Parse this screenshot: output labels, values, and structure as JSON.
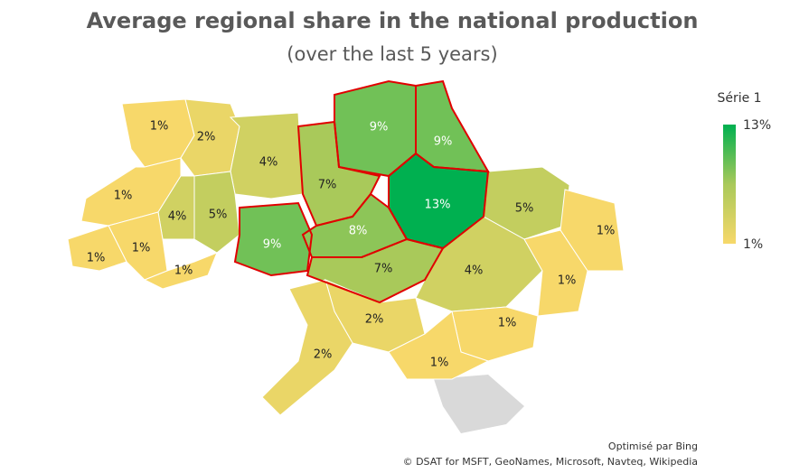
{
  "chart_data": {
    "type": "choropleth",
    "title": "Average regional share in the national production",
    "subtitle": "(over the last 5 years)",
    "values": [
      1,
      2,
      4,
      7,
      9,
      9,
      13,
      5,
      1,
      4,
      5,
      9,
      8,
      7,
      4,
      1,
      1,
      1,
      1,
      1,
      2,
      2,
      1,
      1
    ],
    "value_labels": [
      "1%",
      "2%",
      "4%",
      "7%",
      "9%",
      "9%",
      "13%",
      "5%",
      "1%",
      "4%",
      "5%",
      "9%",
      "8%",
      "7%",
      "4%",
      "1%",
      "1%",
      "1%",
      "1%",
      "1%",
      "2%",
      "2%",
      "1%",
      "1%"
    ],
    "legend_title": "Série 1",
    "color_range": [
      {
        "value": 1,
        "label": "1%"
      },
      {
        "value": 13,
        "label": "13%"
      }
    ],
    "colors": [
      "#f7d86a",
      "#a9c95a",
      "#00b050"
    ],
    "attribution": [
      "Optimisé par Bing",
      "© DSAT for MSFT, GeoNames, Microsoft, Navteq, Wikipedia"
    ]
  }
}
